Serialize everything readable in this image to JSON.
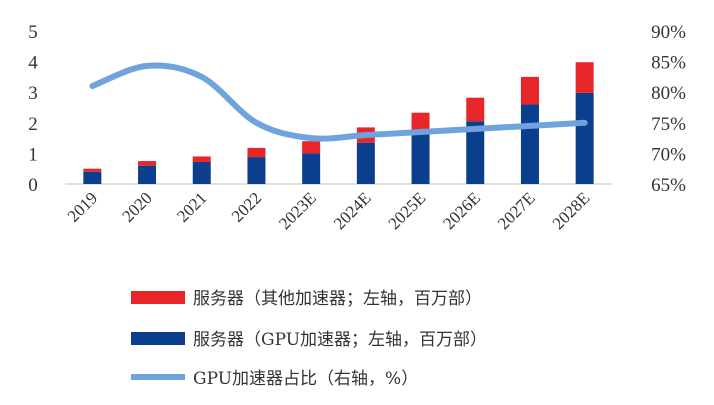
{
  "chart_data": {
    "type": "bar",
    "categories": [
      "2019",
      "2020",
      "2021",
      "2022",
      "2023E",
      "2024E",
      "2025E",
      "2026E",
      "2027E",
      "2028E"
    ],
    "series": [
      {
        "name": "服务器（GPU加速器；左轴，百万部）",
        "kind": "bar",
        "axis": "left",
        "color": "#0B3E8C",
        "values": [
          0.4,
          0.6,
          0.72,
          0.88,
          1.0,
          1.35,
          1.65,
          2.05,
          2.6,
          2.98
        ]
      },
      {
        "name": "服务器（其他加速器；左轴，百万部）",
        "kind": "bar",
        "axis": "left",
        "color": "#E8262A",
        "values": [
          0.1,
          0.15,
          0.18,
          0.3,
          0.4,
          0.5,
          0.68,
          0.77,
          0.9,
          1.0
        ]
      },
      {
        "name": "GPU加速器占比（右轴，%）",
        "kind": "line",
        "axis": "right",
        "color": "#6FA3DD",
        "values": [
          81,
          84.3,
          82.5,
          75,
          72.5,
          73,
          73.5,
          74,
          74.5,
          75
        ]
      }
    ],
    "left_axis": {
      "ylim": [
        0,
        5
      ],
      "ticks": [
        "0",
        "1",
        "2",
        "3",
        "4",
        "5"
      ]
    },
    "right_axis": {
      "ylim": [
        65,
        90
      ],
      "ticks": [
        "65%",
        "70%",
        "75%",
        "80%",
        "85%",
        "90%"
      ]
    },
    "legend": {
      "position": "bottom",
      "entries": [
        "服务器（其他加速器；左轴，百万部）",
        "服务器（GPU加速器；左轴，百万部）",
        "GPU加速器占比（右轴，%）"
      ]
    },
    "title": "",
    "xlabel": "",
    "ylabel": ""
  }
}
